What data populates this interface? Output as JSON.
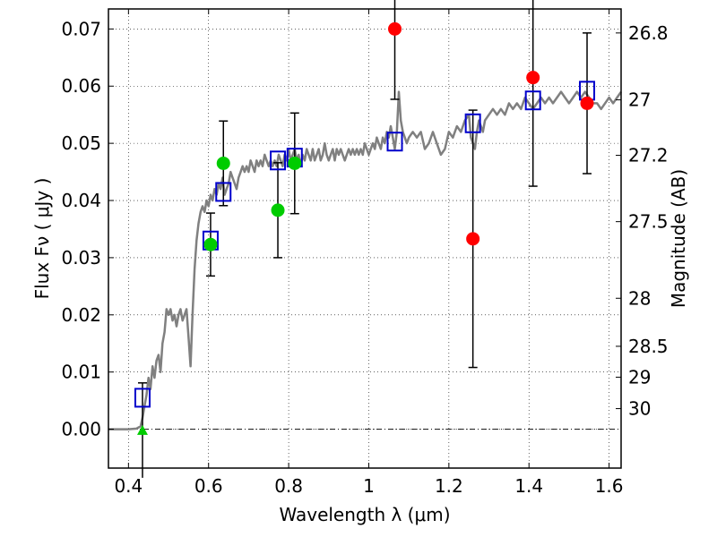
{
  "chart_data": {
    "type": "scatter",
    "xlabel": "Wavelength  λ (μm)",
    "ylabel": "Flux  Fν  ( μJy )",
    "ylabel_right": "Magnitude (AB)",
    "xlim": [
      0.35,
      1.63
    ],
    "ylim": [
      -0.0068,
      0.0735
    ],
    "grid": true,
    "x_ticks": [
      0.4,
      0.6,
      0.8,
      1.0,
      1.2,
      1.4,
      1.6
    ],
    "x_tick_labels": [
      "0.4",
      "0.6",
      "0.8",
      "1",
      "1.2",
      "1.4",
      "1.6"
    ],
    "y_ticks": [
      0.0,
      0.01,
      0.02,
      0.03,
      0.04,
      0.05,
      0.06,
      0.07
    ],
    "y_tick_labels": [
      "0.00",
      "0.01",
      "0.02",
      "0.03",
      "0.04",
      "0.05",
      "0.06",
      "0.07"
    ],
    "right_ticks": [
      {
        "label": "26.8",
        "flux": 0.0693
      },
      {
        "label": "27",
        "flux": 0.0576
      },
      {
        "label": "27.2",
        "flux": 0.0479
      },
      {
        "label": "27.5",
        "flux": 0.0363
      },
      {
        "label": "28",
        "flux": 0.0229
      },
      {
        "label": "28.5",
        "flux": 0.0145
      },
      {
        "label": "29",
        "flux": 0.0091
      },
      {
        "label": "30",
        "flux": 0.0036
      }
    ],
    "series": [
      {
        "kind": "model",
        "color": "#808080",
        "x": [
          0.35,
          0.38,
          0.4,
          0.42,
          0.43,
          0.435,
          0.44,
          0.445,
          0.45,
          0.455,
          0.46,
          0.465,
          0.47,
          0.475,
          0.48,
          0.485,
          0.49,
          0.495,
          0.5,
          0.505,
          0.51,
          0.515,
          0.52,
          0.525,
          0.53,
          0.535,
          0.54,
          0.545,
          0.55,
          0.555,
          0.56,
          0.565,
          0.57,
          0.575,
          0.58,
          0.585,
          0.59,
          0.595,
          0.6,
          0.605,
          0.61,
          0.615,
          0.62,
          0.625,
          0.63,
          0.635,
          0.64,
          0.645,
          0.65,
          0.655,
          0.66,
          0.665,
          0.67,
          0.675,
          0.68,
          0.685,
          0.69,
          0.695,
          0.7,
          0.705,
          0.71,
          0.715,
          0.72,
          0.725,
          0.73,
          0.735,
          0.74,
          0.745,
          0.75,
          0.755,
          0.76,
          0.765,
          0.77,
          0.775,
          0.78,
          0.785,
          0.79,
          0.795,
          0.8,
          0.805,
          0.81,
          0.815,
          0.82,
          0.825,
          0.83,
          0.835,
          0.84,
          0.845,
          0.85,
          0.855,
          0.86,
          0.865,
          0.87,
          0.875,
          0.88,
          0.885,
          0.89,
          0.895,
          0.9,
          0.905,
          0.91,
          0.915,
          0.92,
          0.925,
          0.93,
          0.935,
          0.94,
          0.945,
          0.95,
          0.955,
          0.96,
          0.965,
          0.97,
          0.975,
          0.98,
          0.985,
          0.99,
          0.995,
          1.0,
          1.005,
          1.01,
          1.015,
          1.02,
          1.025,
          1.03,
          1.035,
          1.04,
          1.045,
          1.05,
          1.055,
          1.06,
          1.065,
          1.07,
          1.075,
          1.08,
          1.085,
          1.09,
          1.095,
          1.1,
          1.11,
          1.12,
          1.13,
          1.14,
          1.15,
          1.16,
          1.17,
          1.18,
          1.19,
          1.2,
          1.21,
          1.22,
          1.23,
          1.24,
          1.25,
          1.255,
          1.26,
          1.265,
          1.27,
          1.275,
          1.28,
          1.285,
          1.29,
          1.3,
          1.31,
          1.32,
          1.33,
          1.34,
          1.35,
          1.36,
          1.37,
          1.38,
          1.39,
          1.4,
          1.41,
          1.42,
          1.43,
          1.44,
          1.45,
          1.46,
          1.47,
          1.48,
          1.49,
          1.5,
          1.51,
          1.52,
          1.53,
          1.54,
          1.55,
          1.56,
          1.57,
          1.58,
          1.59,
          1.6,
          1.61,
          1.62,
          1.63
        ],
        "y": [
          0.0,
          0.0,
          0.0,
          0.0001,
          0.0005,
          0.002,
          0.004,
          0.006,
          0.009,
          0.007,
          0.011,
          0.009,
          0.012,
          0.013,
          0.01,
          0.015,
          0.017,
          0.021,
          0.02,
          0.021,
          0.019,
          0.02,
          0.018,
          0.02,
          0.021,
          0.019,
          0.02,
          0.021,
          0.016,
          0.011,
          0.02,
          0.028,
          0.033,
          0.036,
          0.038,
          0.039,
          0.038,
          0.04,
          0.039,
          0.041,
          0.04,
          0.042,
          0.041,
          0.043,
          0.042,
          0.044,
          0.041,
          0.042,
          0.043,
          0.045,
          0.044,
          0.043,
          0.042,
          0.044,
          0.045,
          0.046,
          0.045,
          0.046,
          0.045,
          0.047,
          0.046,
          0.045,
          0.047,
          0.046,
          0.047,
          0.046,
          0.048,
          0.047,
          0.046,
          0.047,
          0.046,
          0.047,
          0.046,
          0.048,
          0.047,
          0.046,
          0.048,
          0.047,
          0.049,
          0.047,
          0.048,
          0.049,
          0.047,
          0.048,
          0.046,
          0.048,
          0.047,
          0.049,
          0.048,
          0.047,
          0.049,
          0.047,
          0.048,
          0.049,
          0.047,
          0.048,
          0.05,
          0.048,
          0.047,
          0.048,
          0.049,
          0.047,
          0.049,
          0.048,
          0.049,
          0.048,
          0.047,
          0.048,
          0.049,
          0.048,
          0.049,
          0.048,
          0.049,
          0.048,
          0.049,
          0.048,
          0.05,
          0.049,
          0.048,
          0.049,
          0.05,
          0.049,
          0.051,
          0.05,
          0.049,
          0.051,
          0.05,
          0.052,
          0.051,
          0.053,
          0.051,
          0.049,
          0.052,
          0.059,
          0.054,
          0.052,
          0.051,
          0.05,
          0.051,
          0.052,
          0.051,
          0.052,
          0.049,
          0.05,
          0.052,
          0.05,
          0.048,
          0.049,
          0.052,
          0.051,
          0.053,
          0.052,
          0.054,
          0.055,
          0.051,
          0.05,
          0.049,
          0.052,
          0.054,
          0.053,
          0.052,
          0.054,
          0.055,
          0.056,
          0.055,
          0.056,
          0.055,
          0.057,
          0.056,
          0.057,
          0.056,
          0.058,
          0.057,
          0.056,
          0.057,
          0.058,
          0.057,
          0.058,
          0.057,
          0.058,
          0.059,
          0.058,
          0.057,
          0.058,
          0.059,
          0.058,
          0.059,
          0.058,
          0.057,
          0.057,
          0.056,
          0.057,
          0.058,
          0.057,
          0.058,
          0.059
        ]
      },
      {
        "kind": "model-photometry",
        "marker": "open-square",
        "color": "#0000cc",
        "x": [
          0.435,
          0.605,
          0.637,
          0.773,
          0.815,
          1.065,
          1.26,
          1.41,
          1.545
        ],
        "y": [
          0.0055,
          0.033,
          0.0415,
          0.047,
          0.0475,
          0.0503,
          0.0535,
          0.0575,
          0.0592
        ]
      },
      {
        "kind": "observed",
        "marker": "circle",
        "color": "#00cc00",
        "x": [
          0.605,
          0.637,
          0.773,
          0.815
        ],
        "y": [
          0.0323,
          0.0465,
          0.0383,
          0.0465
        ],
        "yerr": [
          0.0055,
          0.0074,
          0.0083,
          0.0088
        ]
      },
      {
        "kind": "observed",
        "marker": "circle",
        "color": "#ff0000",
        "x": [
          1.065,
          1.26,
          1.41,
          1.545
        ],
        "y": [
          0.07,
          0.0333,
          0.0615,
          0.057
        ],
        "yerr": [
          0.0123,
          0.0225,
          0.019,
          0.0123
        ]
      },
      {
        "kind": "upper-limit",
        "marker": "triangle",
        "color": "#00cc00",
        "x": [
          0.435
        ],
        "y": [
          -0.0002
        ],
        "yerr": [
          0.0083
        ]
      }
    ]
  }
}
